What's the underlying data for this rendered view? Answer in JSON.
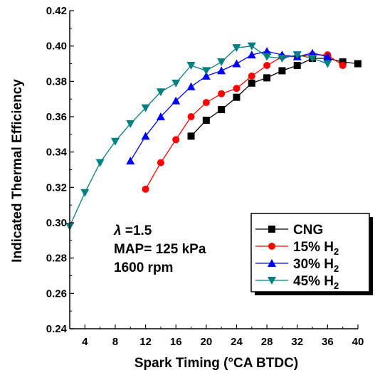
{
  "chart_data": {
    "type": "line",
    "xlabel": "Spark Timing (°CA BTDC)",
    "ylabel": "Indicated Thermal Efficiency",
    "xlim": [
      2,
      40
    ],
    "ylim": [
      0.24,
      0.42
    ],
    "xticks": [
      4,
      8,
      12,
      16,
      20,
      24,
      28,
      32,
      36,
      40
    ],
    "xtick_labels": [
      "4",
      "8",
      "12",
      "16",
      "20",
      "24",
      "28",
      "32",
      "36",
      "40"
    ],
    "yticks": [
      0.24,
      0.26,
      0.28,
      0.3,
      0.32,
      0.34,
      0.36,
      0.38,
      0.4,
      0.42
    ],
    "ytick_labels": [
      "0.24",
      "0.26",
      "0.28",
      "0.30",
      "0.32",
      "0.34",
      "0.36",
      "0.38",
      "0.40",
      "0.42"
    ],
    "grid": false,
    "legend_position": "bottom-right",
    "annotation": {
      "lambda_symbol": "λ",
      "lambda_value": " =1.5",
      "map": "MAP= 125 kPa",
      "rpm": "1600 rpm"
    },
    "series": [
      {
        "name": "CNG",
        "legend_main": "CNG",
        "legend_sub": "",
        "color": "#000000",
        "marker": "square",
        "x": [
          18,
          20,
          22,
          24,
          26,
          28,
          30,
          32,
          34,
          36,
          38,
          40
        ],
        "y": [
          0.349,
          0.358,
          0.364,
          0.371,
          0.379,
          0.382,
          0.386,
          0.389,
          0.393,
          0.393,
          0.391,
          0.39
        ]
      },
      {
        "name": "15% H2",
        "legend_main": "15% H",
        "legend_sub": "2",
        "color": "#ff0000",
        "marker": "circle",
        "x": [
          12,
          14,
          16,
          18,
          20,
          22,
          24,
          26,
          28,
          30,
          32,
          34,
          36,
          38
        ],
        "y": [
          0.319,
          0.334,
          0.347,
          0.36,
          0.368,
          0.373,
          0.376,
          0.383,
          0.389,
          0.394,
          0.394,
          0.395,
          0.395,
          0.389
        ]
      },
      {
        "name": "30% H2",
        "legend_main": "30% H",
        "legend_sub": "2",
        "color": "#0000ff",
        "marker": "triangle-up",
        "x": [
          10,
          12,
          14,
          16,
          18,
          20,
          22,
          24,
          26,
          28,
          30,
          32,
          34,
          36
        ],
        "y": [
          0.335,
          0.349,
          0.36,
          0.369,
          0.377,
          0.383,
          0.386,
          0.39,
          0.395,
          0.397,
          0.395,
          0.394,
          0.396,
          0.394
        ]
      },
      {
        "name": "45% H2",
        "legend_main": "45% H",
        "legend_sub": "2",
        "color": "#008080",
        "marker": "triangle-down",
        "x": [
          2,
          4,
          6,
          8,
          10,
          12,
          14,
          16,
          18,
          20,
          22,
          24,
          26,
          28,
          30,
          32,
          34,
          36
        ],
        "y": [
          0.298,
          0.317,
          0.334,
          0.346,
          0.356,
          0.365,
          0.374,
          0.379,
          0.389,
          0.386,
          0.391,
          0.399,
          0.4,
          0.394,
          0.393,
          0.395,
          0.393,
          0.39
        ]
      }
    ]
  }
}
